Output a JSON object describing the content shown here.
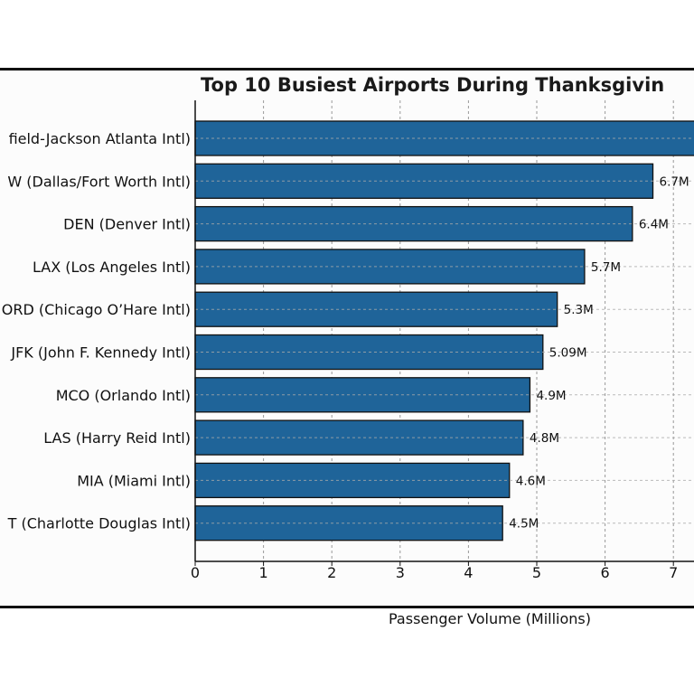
{
  "chart_data": {
    "type": "bar",
    "orientation": "horizontal",
    "title": "Top 10 Busiest Airports During Thanksgivin",
    "xlabel": "Passenger Volume (Millions)",
    "ylabel": "",
    "xlim": [
      0,
      7.3
    ],
    "xticks": [
      "0",
      "1",
      "2",
      "3",
      "4",
      "5",
      "6",
      "7"
    ],
    "grid": true,
    "categories": [
      "field-Jackson Atlanta Intl)",
      "W (Dallas/Fort Worth Intl)",
      "DEN (Denver Intl)",
      "LAX (Los Angeles Intl)",
      "ORD (Chicago O’Hare Intl)",
      "JFK (John F. Kennedy Intl)",
      "MCO (Orlando Intl)",
      "LAS (Harry Reid Intl)",
      "MIA (Miami Intl)",
      "T (Charlotte Douglas Intl)"
    ],
    "values": [
      7.5,
      6.7,
      6.4,
      5.7,
      5.3,
      5.09,
      4.9,
      4.8,
      4.6,
      4.5
    ],
    "data_labels": [
      "",
      "6.7M",
      "6.4M",
      "5.7M",
      "5.3M",
      "5.09M",
      "4.9M",
      "4.8M",
      "4.6M",
      "4.5M"
    ],
    "bar_color": "#1f6499",
    "edge_color": "#111111"
  }
}
